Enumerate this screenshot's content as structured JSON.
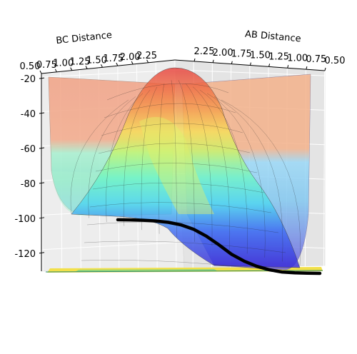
{
  "chart_data": {
    "type": "surface3d",
    "xlabel": "BC Distance",
    "ylabel": "AB Distance",
    "zlabel": "",
    "bc_ticks": [
      "0.50",
      "0.75",
      "1.00",
      "1.25",
      "1.50",
      "1.75",
      "2.00",
      "2.25"
    ],
    "ab_ticks": [
      "2.25",
      "2.00",
      "1.75",
      "1.50",
      "1.25",
      "1.00",
      "0.75",
      "0.50"
    ],
    "z_ticks": [
      "-20",
      "-40",
      "-60",
      "-80",
      "-100",
      "-120"
    ],
    "z_values": [
      -20,
      -40,
      -60,
      -80,
      -100,
      -120
    ],
    "zlim": [
      -135,
      -15
    ],
    "grid": true,
    "trajectory_z": [
      -103.5,
      -103.6,
      -103.8,
      -104.2,
      -105.0,
      -106.5,
      -109.0,
      -113.0,
      -118.0,
      -123.5,
      -127.5,
      -130.5,
      -132.5,
      -133.8,
      -134.3,
      -134.5,
      -134.6
    ]
  }
}
